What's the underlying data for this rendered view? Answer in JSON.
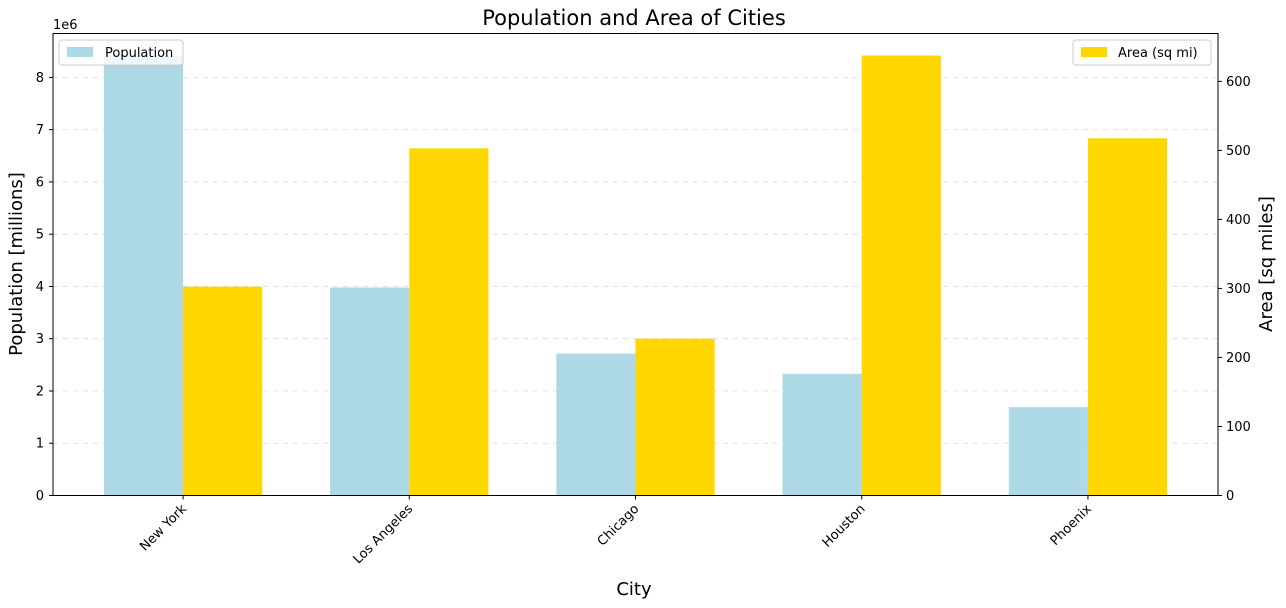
{
  "chart_data": {
    "type": "bar",
    "title": "Population and Area of Cities",
    "xlabel": "City",
    "ylabel": "Population [millions]",
    "y2label": "Area [sq miles]",
    "y_offset_label": "1e6",
    "categories": [
      "New York",
      "Los Angeles",
      "Chicago",
      "Houston",
      "Phoenix"
    ],
    "series": [
      {
        "name": "Population",
        "axis": "left",
        "color": "#add8e6",
        "values": [
          8419000,
          3980000,
          2716000,
          2328000,
          1690000
        ]
      },
      {
        "name": "Area (sq mi)",
        "axis": "right",
        "color": "#ffd700",
        "values": [
          302.6,
          503,
          227.3,
          637.5,
          517.6
        ]
      }
    ],
    "ylim": [
      0,
      8839950
    ],
    "y_ticks": [
      0,
      1,
      2,
      3,
      4,
      5,
      6,
      7,
      8
    ],
    "y2lim": [
      0,
      669.375
    ],
    "y2_ticks": [
      0,
      100,
      200,
      300,
      400,
      500,
      600
    ],
    "grid": "y-dashed",
    "legend_left_position": "upper-left",
    "legend_right_position": "upper-right",
    "xtick_rotation": 45
  }
}
